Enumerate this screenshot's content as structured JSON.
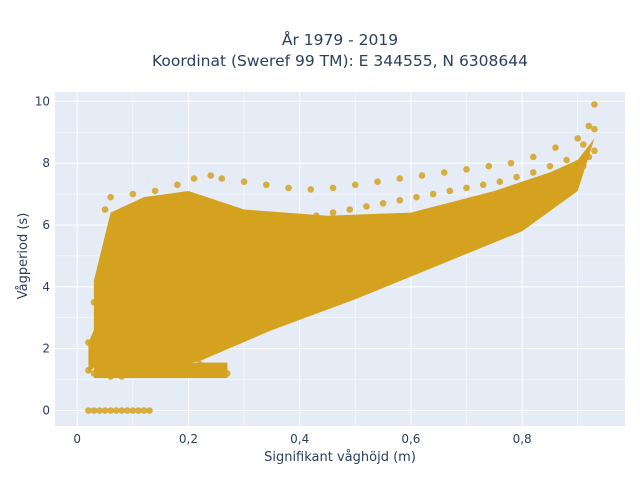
{
  "chart_data": {
    "type": "scatter",
    "title": [
      "År 1979 - 2019",
      "Koordinat (Sweref 99 TM): E 344555, N 6308644"
    ],
    "xlabel": "Signifikant våghöjd (m)",
    "ylabel": "Vågperiod (s)",
    "xlim": [
      -0.04,
      0.985
    ],
    "ylim": [
      -0.5,
      10.3
    ],
    "xticks": [
      0,
      0.2,
      0.4,
      0.6,
      0.8
    ],
    "xtick_labels": [
      "0",
      "0,2",
      "0,4",
      "0,6",
      "0,8"
    ],
    "yticks": [
      0,
      2,
      4,
      6,
      8,
      10
    ],
    "ytick_labels": [
      "0",
      "2",
      "4",
      "6",
      "8",
      "10"
    ],
    "grid": true,
    "legend": "none",
    "colors": {
      "marker": "#d4a21f",
      "plot_bg": "#e5ecf6",
      "grid": "#ffffff",
      "text": "#2a3f5f"
    },
    "series": [
      {
        "marker_color": "#d4a21f",
        "x": [
          0.02,
          0.03,
          0.04,
          0.05,
          0.06,
          0.07,
          0.08,
          0.09,
          0.1,
          0.11,
          0.12,
          0.13,
          0.02,
          0.03,
          0.05,
          0.06,
          0.08,
          0.1,
          0.12,
          0.14,
          0.16,
          0.18,
          0.2,
          0.22,
          0.24,
          0.26,
          0.27,
          0.02,
          0.04,
          0.06,
          0.08,
          0.1,
          0.13,
          0.16,
          0.19,
          0.22,
          0.25,
          0.28,
          0.31,
          0.34,
          0.37,
          0.4,
          0.43,
          0.46,
          0.49,
          0.52,
          0.55,
          0.58,
          0.61,
          0.64,
          0.67,
          0.7,
          0.73,
          0.76,
          0.79,
          0.82,
          0.85,
          0.88,
          0.91,
          0.93,
          0.03,
          0.05,
          0.07,
          0.1,
          0.13,
          0.16,
          0.19,
          0.22,
          0.25,
          0.28,
          0.31,
          0.34,
          0.37,
          0.4,
          0.43,
          0.46,
          0.49,
          0.52,
          0.55,
          0.58,
          0.61,
          0.64,
          0.67,
          0.7,
          0.73,
          0.76,
          0.79,
          0.82,
          0.85,
          0.88,
          0.91,
          0.93,
          0.05,
          0.06,
          0.1,
          0.14,
          0.18,
          0.21,
          0.24,
          0.26,
          0.3,
          0.34,
          0.38,
          0.42,
          0.46,
          0.5,
          0.54,
          0.58,
          0.62,
          0.66,
          0.7,
          0.74,
          0.78,
          0.82,
          0.86,
          0.9,
          0.92,
          0.93,
          0.08,
          0.12,
          0.16,
          0.2,
          0.22,
          0.25,
          0.28,
          0.3,
          0.33,
          0.36,
          0.4,
          0.44,
          0.48,
          0.52,
          0.56,
          0.6,
          0.65,
          0.7,
          0.75,
          0.8,
          0.84,
          0.88,
          0.9,
          0.92,
          0.1,
          0.14,
          0.18,
          0.22,
          0.26,
          0.3,
          0.35,
          0.4,
          0.45,
          0.5,
          0.55,
          0.6,
          0.65,
          0.7,
          0.75,
          0.8,
          0.85,
          0.88,
          0.9
        ],
        "y": [
          0,
          0,
          0,
          0,
          0,
          0,
          0,
          0,
          0,
          0,
          0,
          0,
          1.3,
          1.2,
          1.15,
          1.1,
          1.1,
          1.15,
          1.2,
          1.3,
          1.4,
          1.5,
          1.55,
          1.5,
          1.45,
          1.4,
          1.2,
          2.2,
          2.4,
          2.6,
          2.8,
          3.0,
          3.2,
          3.4,
          3.6,
          3.8,
          3.95,
          4.1,
          4.3,
          4.45,
          4.6,
          4.75,
          4.9,
          5.05,
          5.2,
          5.35,
          5.5,
          5.65,
          5.8,
          5.95,
          6.1,
          6.25,
          6.4,
          6.6,
          6.8,
          7.0,
          7.2,
          7.5,
          7.9,
          8.4,
          3.5,
          4.5,
          5.0,
          5.3,
          5.5,
          5.6,
          5.7,
          5.8,
          5.85,
          5.9,
          6.0,
          6.05,
          6.1,
          6.2,
          6.3,
          6.4,
          6.5,
          6.6,
          6.7,
          6.8,
          6.9,
          7.0,
          7.1,
          7.2,
          7.3,
          7.4,
          7.55,
          7.7,
          7.9,
          8.1,
          8.6,
          9.1,
          6.5,
          6.9,
          7.0,
          7.1,
          7.3,
          7.5,
          7.6,
          7.5,
          7.4,
          7.3,
          7.2,
          7.15,
          7.2,
          7.3,
          7.4,
          7.5,
          7.6,
          7.7,
          7.8,
          7.9,
          8.0,
          8.2,
          8.5,
          8.8,
          9.2,
          9.9,
          1.8,
          2.2,
          2.5,
          2.8,
          3.0,
          3.2,
          3.4,
          3.5,
          3.7,
          3.9,
          4.1,
          4.3,
          4.6,
          4.8,
          5.0,
          5.2,
          5.5,
          5.8,
          6.1,
          6.4,
          6.8,
          7.2,
          7.6,
          8.2,
          4.0,
          4.6,
          5.0,
          5.2,
          5.4,
          5.5,
          5.6,
          5.7,
          5.8,
          5.9,
          6.0,
          6.1,
          6.3,
          6.5,
          6.7,
          6.9,
          7.2,
          7.6,
          8.0
        ]
      }
    ]
  }
}
